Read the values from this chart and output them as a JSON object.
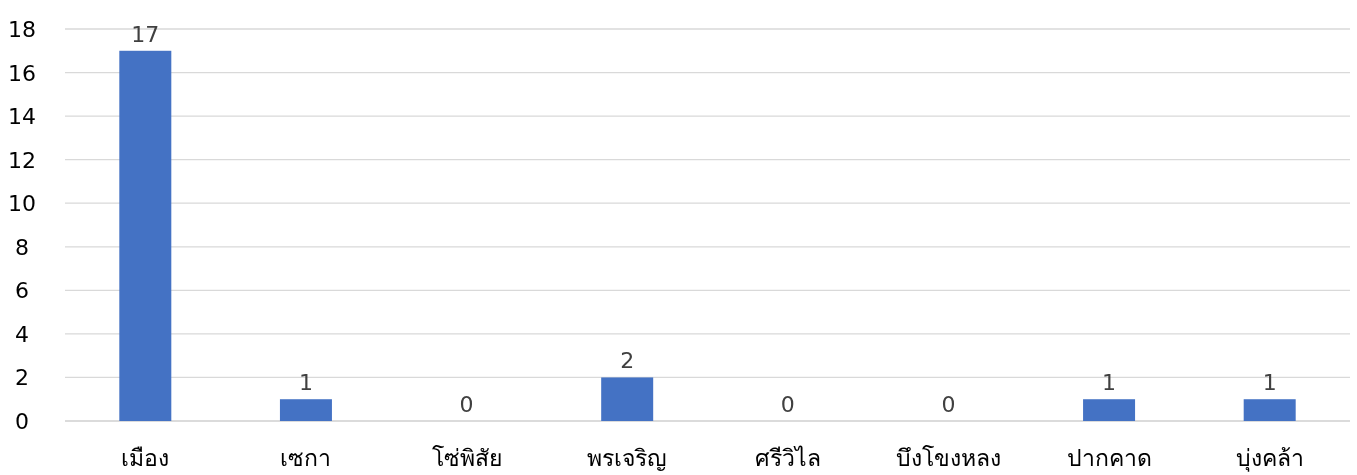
{
  "chart_data": {
    "type": "bar",
    "categories": [
      "เมือง",
      "เซกา",
      "โซ่พิสัย",
      "พรเจริญ",
      "ศรีวิไล",
      "บึงโขงหลง",
      "ปากคาด",
      "บุ่งคล้า"
    ],
    "values": [
      17,
      1,
      0,
      2,
      0,
      0,
      1,
      1
    ],
    "color": "#4472c4",
    "data_labels": true,
    "ylim": [
      0,
      18
    ],
    "yticks": [
      0,
      2,
      4,
      6,
      8,
      10,
      12,
      14,
      16,
      18
    ],
    "grid": "y",
    "legend": false
  }
}
